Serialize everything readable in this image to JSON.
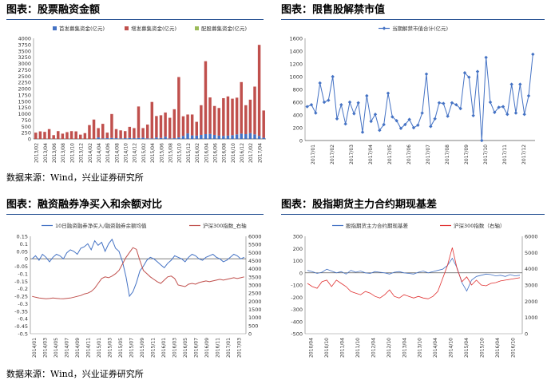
{
  "panels": {
    "p1": {
      "title": "图表：股票融资金额"
    },
    "p2": {
      "title": "图表：限售股解禁市值"
    },
    "p3": {
      "title": "图表：融资融券净买入和余额对比"
    },
    "p4": {
      "title": "图表：股指期货主力合约期现基差"
    }
  },
  "sources": {
    "top": "数据来源：Wind，兴业证券研究所",
    "bottom": "数据来源：Wind，兴业证券研究所"
  },
  "colors": {
    "blue": "#4472c4",
    "red": "#c0504d",
    "green": "#9bbb59",
    "title_rule": "#1e4b8f"
  },
  "chart_data": [
    {
      "id": "financing",
      "type": "bar",
      "title": "",
      "legend_position": "top",
      "ylim": [
        0,
        4000
      ],
      "yticks": [
        0,
        250,
        500,
        750,
        1000,
        1250,
        1500,
        1750,
        2000,
        2250,
        2500,
        2750,
        3000,
        3250,
        3500,
        3750,
        4000
      ],
      "xtick_labels": [
        "2013/02",
        "2013/04",
        "2013/06",
        "2013/08",
        "2013/10",
        "2013/12",
        "2014/02",
        "2014/04",
        "2014/06",
        "2014/08",
        "2014/10",
        "2014/12",
        "2015/02",
        "2015/04",
        "2015/06",
        "2015/08",
        "2015/10",
        "2015/12",
        "2016/02",
        "2016/04",
        "2016/06",
        "2016/08",
        "2016/10",
        "2016/12",
        "2017/02",
        "2017/04"
      ],
      "series": [
        {
          "name": "首发募集资金(亿元)",
          "color": "#4472c4",
          "values": [
            0,
            0,
            0,
            0,
            0,
            0,
            0,
            0,
            0,
            0,
            0,
            0,
            0,
            0,
            60,
            20,
            30,
            40,
            30,
            20,
            30,
            40,
            30,
            40,
            50,
            20,
            20,
            60,
            40,
            90,
            20,
            30,
            60,
            120,
            220,
            140,
            130,
            160,
            190,
            200,
            160,
            130,
            120,
            130,
            150,
            180,
            210,
            190,
            230,
            180,
            120,
            50
          ]
        },
        {
          "name": "增发募集资金(亿元)",
          "color": "#c0504d",
          "values": [
            250,
            300,
            280,
            390,
            150,
            310,
            210,
            270,
            310,
            300,
            170,
            230,
            550,
            770,
            370,
            580,
            220,
            950,
            360,
            320,
            280,
            440,
            400,
            1250,
            380,
            550,
            1450,
            850,
            900,
            960,
            820,
            1150,
            2400,
            780,
            750,
            830,
            550,
            1180,
            2900,
            1450,
            1150,
            1100,
            1500,
            1560,
            1450,
            1460,
            2050,
            1150,
            1330,
            1900,
            3620,
            1080
          ]
        },
        {
          "name": "配股募集资金(亿元)",
          "color": "#9bbb59",
          "values": [
            0,
            0,
            0,
            0,
            0,
            0,
            0,
            0,
            0,
            0,
            0,
            0,
            0,
            0,
            0,
            0,
            0,
            0,
            0,
            0,
            0,
            0,
            0,
            0,
            0,
            0,
            0,
            0,
            0,
            0,
            0,
            0,
            0,
            0,
            0,
            0,
            0,
            0,
            0,
            0,
            0,
            0,
            0,
            0,
            0,
            0,
            0,
            0,
            0,
            0,
            0,
            0
          ]
        }
      ]
    },
    {
      "id": "unlock",
      "type": "line",
      "title": "",
      "legend_position": "top",
      "ylim": [
        0,
        1600
      ],
      "yticks": [
        0,
        200,
        400,
        600,
        800,
        1000,
        1200,
        1400,
        1600
      ],
      "xtick_labels": [
        "2017/01",
        "2017/02",
        "2017/03",
        "2017/04",
        "2017/05",
        "2017/06",
        "2017/07",
        "2017/08",
        "2017/09",
        "2017/10",
        "2017/11",
        "2017/12"
      ],
      "series": [
        {
          "name": "当期解禁市值合计(亿元)",
          "color": "#4472c4",
          "values": [
            530,
            560,
            430,
            900,
            600,
            630,
            1000,
            340,
            560,
            260,
            600,
            420,
            590,
            130,
            700,
            300,
            410,
            160,
            250,
            740,
            370,
            310,
            190,
            250,
            330,
            200,
            240,
            430,
            1040,
            220,
            340,
            590,
            580,
            380,
            590,
            560,
            500,
            1060,
            990,
            390,
            1080,
            0,
            1300,
            600,
            440,
            520,
            530,
            410,
            880,
            430,
            880,
            410,
            700,
            1350
          ]
        }
      ]
    },
    {
      "id": "margin",
      "type": "line",
      "title": "",
      "legend_position": "top",
      "ylim": [
        -0.5,
        0.15
      ],
      "yticks": [
        -0.5,
        -0.45,
        -0.4,
        -0.35,
        -0.3,
        -0.25,
        -0.2,
        -0.15,
        -0.1,
        -0.05,
        0,
        0.05,
        0.1,
        0.15
      ],
      "y2lim": [
        0,
        6000
      ],
      "y2ticks": [
        0,
        500,
        1000,
        1500,
        2000,
        2500,
        3000,
        3500,
        4000,
        4500,
        5000,
        5500,
        6000
      ],
      "xtick_labels": [
        "2014/01",
        "2014/03",
        "2014/05",
        "2014/07",
        "2014/09",
        "2014/11",
        "2015/01",
        "2015/03",
        "2015/05",
        "2015/07",
        "2015/09",
        "2015/11",
        "2016/01",
        "2016/03",
        "2016/05",
        "2016/07",
        "2016/09",
        "2016/11",
        "2017/01",
        "2017/03"
      ],
      "series": [
        {
          "name": "10日融资融券净买入/融资融券余额均值",
          "color": "#4472c4",
          "axis": "left",
          "values": [
            0.0,
            0.02,
            -0.01,
            0.03,
            0.01,
            -0.02,
            0.01,
            0.03,
            0.02,
            0.0,
            0.04,
            0.06,
            0.05,
            0.03,
            0.07,
            0.08,
            0.1,
            0.06,
            0.12,
            0.09,
            0.11,
            0.05,
            0.1,
            0.13,
            0.07,
            0.05,
            -0.02,
            -0.12,
            -0.25,
            -0.22,
            -0.16,
            -0.08,
            -0.05,
            -0.01,
            0.01,
            0.0,
            -0.02,
            -0.04,
            -0.06,
            -0.03,
            -0.01,
            0.02,
            0.01,
            0.0,
            -0.02,
            0.01,
            0.03,
            0.02,
            0.0,
            -0.01,
            0.01,
            0.02,
            0.03,
            0.01,
            0.0,
            -0.02,
            -0.01,
            0.01,
            0.03,
            0.02,
            0.0,
            0.01
          ]
        },
        {
          "name": "沪深300指数_右轴",
          "color": "#c0504d",
          "axis": "right",
          "values": [
            2300,
            2250,
            2200,
            2180,
            2150,
            2170,
            2200,
            2180,
            2160,
            2150,
            2180,
            2200,
            2250,
            2300,
            2350,
            2450,
            2500,
            2600,
            2800,
            3100,
            3400,
            3500,
            3450,
            3550,
            3700,
            3900,
            4300,
            4700,
            5000,
            5300,
            5200,
            4500,
            3900,
            3700,
            3500,
            3350,
            3200,
            3100,
            3300,
            3500,
            3550,
            3400,
            3000,
            2950,
            2900,
            3050,
            3100,
            3050,
            3150,
            3200,
            3250,
            3200,
            3250,
            3300,
            3350,
            3300,
            3350,
            3400,
            3450,
            3400,
            3450,
            3500
          ]
        }
      ]
    },
    {
      "id": "basis",
      "type": "line",
      "title": "",
      "legend_position": "top",
      "ylim": [
        -500,
        300
      ],
      "yticks": [
        -500,
        -400,
        -300,
        -200,
        -100,
        0,
        100,
        200,
        300
      ],
      "y2lim": [
        0,
        6000
      ],
      "y2ticks": [
        0,
        1000,
        2000,
        3000,
        4000,
        5000,
        6000
      ],
      "xtick_labels": [
        "2010/04",
        "2010/10",
        "2011/04",
        "2011/10",
        "2012/04",
        "2012/10",
        "2013/04",
        "2013/10",
        "2014/04",
        "2014/10",
        "2015/04",
        "2015/10",
        "2016/04",
        "2016/10"
      ],
      "series": [
        {
          "name": "股指期货主力合约期现基差",
          "color": "#4472c4",
          "axis": "left",
          "values": [
            20,
            10,
            -5,
            5,
            30,
            15,
            0,
            10,
            -10,
            20,
            5,
            15,
            0,
            -5,
            10,
            5,
            0,
            -10,
            5,
            10,
            0,
            -5,
            -10,
            5,
            15,
            0,
            10,
            20,
            30,
            60,
            120,
            40,
            -80,
            -150,
            -60,
            -30,
            -20,
            -10,
            -15,
            -25,
            -20,
            -30,
            -15,
            -25,
            -20
          ]
        },
        {
          "name": "沪深300指数（右轴）",
          "color": "#e03030",
          "axis": "right",
          "values": [
            3100,
            2900,
            2800,
            3200,
            3300,
            2900,
            3300,
            3100,
            2900,
            2600,
            2500,
            2400,
            2600,
            2500,
            2300,
            2200,
            2400,
            2700,
            2300,
            2200,
            2400,
            2300,
            2200,
            2300,
            2200,
            2150,
            2300,
            2600,
            3400,
            4200,
            5300,
            4000,
            3200,
            3500,
            3000,
            3300,
            3000,
            2950,
            3100,
            3150,
            3250,
            3300,
            3350,
            3400,
            3450
          ]
        }
      ]
    }
  ]
}
